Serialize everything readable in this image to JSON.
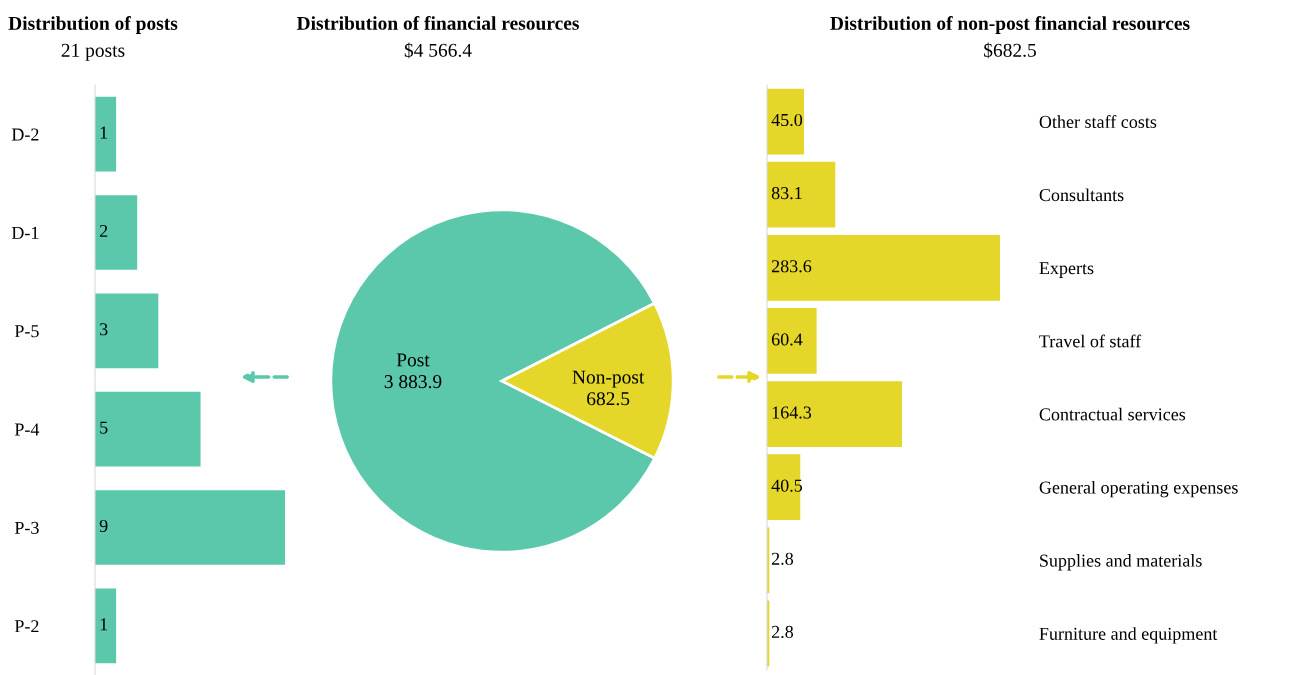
{
  "chart_data": [
    {
      "type": "bar",
      "orientation": "horizontal",
      "title": "Distribution of posts",
      "subtitle": "21 posts",
      "categories": [
        "D-2",
        "D-1",
        "P-5",
        "P-4",
        "P-3",
        "P-2"
      ],
      "values": [
        1,
        2,
        3,
        5,
        9,
        1
      ],
      "color": "#5bc8ac",
      "data_labels": true,
      "tick_labels": "y",
      "grid": false,
      "legend": false
    },
    {
      "type": "pie",
      "title": "Distribution of financial resources",
      "subtitle": "$4 566.4",
      "categories": [
        "Post",
        "Non-post"
      ],
      "values": [
        3883.9,
        682.5
      ],
      "value_labels": [
        "3 883.9",
        "682.5"
      ],
      "colors": [
        "#5bc8ac",
        "#e5d62a"
      ],
      "legend": false
    },
    {
      "type": "bar",
      "orientation": "horizontal",
      "title": "Distribution of non-post financial resources",
      "subtitle": "$682.5",
      "categories": [
        "Other staff costs",
        "Consultants",
        "Experts",
        "Travel of staff",
        "Contractual services",
        "General operating expenses",
        "Supplies and materials",
        "Furniture and equipment"
      ],
      "values": [
        45.0,
        83.1,
        283.6,
        60.4,
        164.3,
        40.5,
        2.8,
        2.8
      ],
      "value_labels": [
        "45.0",
        "83.1",
        "283.6",
        "60.4",
        "164.3",
        "40.5",
        "2.8",
        "2.8"
      ],
      "color": "#e5d62a",
      "tick_labels": "y",
      "grid": false,
      "legend": false
    }
  ]
}
